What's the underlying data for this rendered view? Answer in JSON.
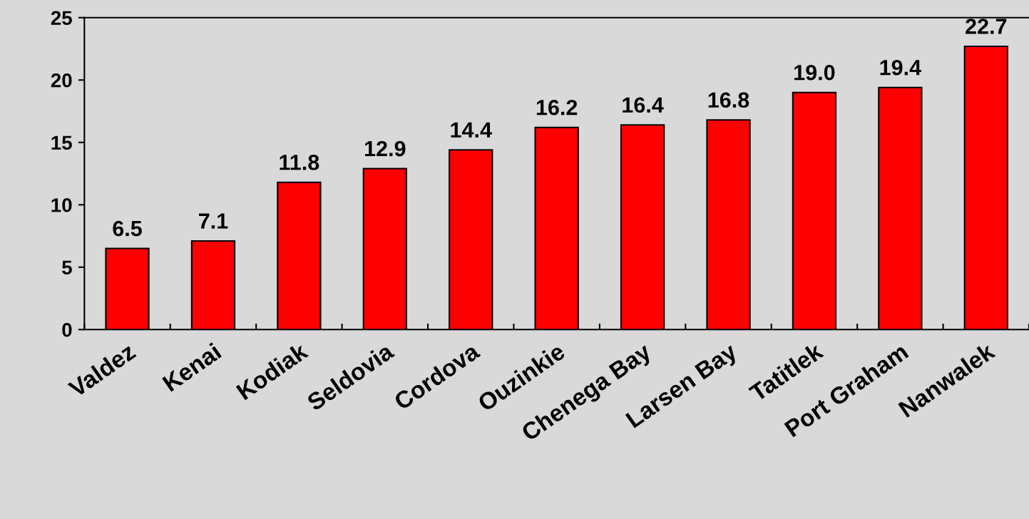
{
  "chart_data": {
    "type": "bar",
    "categories": [
      "Valdez",
      "Kenai",
      "Kodiak",
      "Seldovia",
      "Cordova",
      "Ouzinkie",
      "Chenega Bay",
      "Larsen Bay",
      "Tatitlek",
      "Port Graham",
      "Nanwalek"
    ],
    "values": [
      6.5,
      7.1,
      11.8,
      12.9,
      14.4,
      16.2,
      16.4,
      16.8,
      19.0,
      19.4,
      22.7
    ],
    "value_labels": [
      "6.5",
      "7.1",
      "11.8",
      "12.9",
      "14.4",
      "16.2",
      "16.4",
      "16.8",
      "19.0",
      "19.4",
      "22.7"
    ],
    "color": "#ff0000",
    "ylim": [
      0,
      25
    ],
    "yticks": [
      0,
      5,
      10,
      15,
      20,
      25
    ],
    "grid": false
  }
}
